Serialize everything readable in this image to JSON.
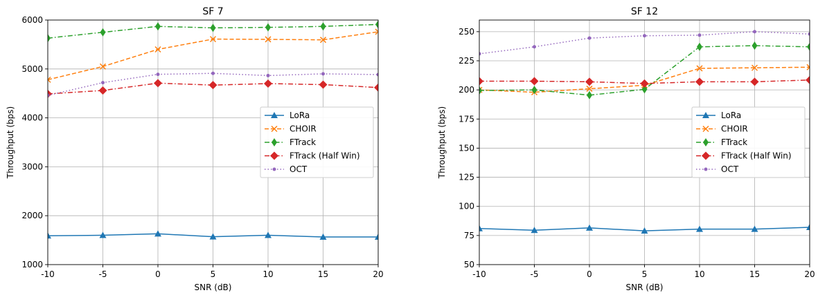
{
  "chart_data": [
    {
      "type": "line",
      "title": "SF 7",
      "xlabel": "SNR (dB)",
      "ylabel": "Throughput (bps)",
      "x": [
        -10,
        -5,
        0,
        5,
        10,
        15,
        20
      ],
      "x_tick_labels": [
        "-10",
        "-5",
        "0",
        "5",
        "10",
        "15",
        "20"
      ],
      "xlim": [
        -10,
        20
      ],
      "ylim": [
        1000,
        6000
      ],
      "y_ticks": [
        1000,
        2000,
        3000,
        4000,
        5000,
        6000
      ],
      "y_tick_labels": [
        "1000",
        "2000",
        "3000",
        "4000",
        "5000",
        "6000"
      ],
      "grid": true,
      "legend_position": "center-right",
      "series": [
        {
          "name": "LoRa",
          "color": "#1f77b4",
          "marker": "triangle",
          "dash": "solid",
          "values": [
            1590,
            1600,
            1630,
            1570,
            1600,
            1565,
            1565
          ]
        },
        {
          "name": "CHOIR",
          "color": "#ff7f0e",
          "marker": "x",
          "dash": "dashed",
          "values": [
            4780,
            5050,
            5400,
            5610,
            5605,
            5595,
            5760
          ]
        },
        {
          "name": "FTrack",
          "color": "#2ca02c",
          "marker": "thin-diamond",
          "dash": "dashdot",
          "values": [
            5630,
            5750,
            5870,
            5840,
            5850,
            5870,
            5910
          ]
        },
        {
          "name": "FTrack (Half Win)",
          "color": "#d62728",
          "marker": "diamond",
          "dash": "dashdot",
          "values": [
            4490,
            4560,
            4710,
            4670,
            4700,
            4680,
            4620
          ]
        },
        {
          "name": "OCT",
          "color": "#9467bd",
          "marker": "dot",
          "dash": "dotted",
          "values": [
            4460,
            4720,
            4890,
            4910,
            4865,
            4900,
            4885
          ]
        }
      ]
    },
    {
      "type": "line",
      "title": "SF 12",
      "xlabel": "SNR (dB)",
      "ylabel": "Throughput (bps)",
      "x": [
        -10,
        -5,
        0,
        5,
        10,
        15,
        20
      ],
      "x_tick_labels": [
        "-10",
        "-5",
        "0",
        "5",
        "10",
        "15",
        "20"
      ],
      "xlim": [
        -10,
        20
      ],
      "ylim": [
        50,
        260
      ],
      "y_ticks": [
        50,
        75,
        100,
        125,
        150,
        175,
        200,
        225,
        250
      ],
      "y_tick_labels": [
        "50",
        "75",
        "100",
        "125",
        "150",
        "175",
        "200",
        "225",
        "250"
      ],
      "grid": true,
      "legend_position": "center-right",
      "series": [
        {
          "name": "LoRa",
          "color": "#1f77b4",
          "marker": "triangle",
          "dash": "solid",
          "values": [
            81,
            79.5,
            81.5,
            79,
            80.5,
            80.5,
            82
          ]
        },
        {
          "name": "CHOIR",
          "color": "#ff7f0e",
          "marker": "x",
          "dash": "dashed",
          "values": [
            200,
            198,
            201,
            204,
            218.5,
            219,
            219.5
          ]
        },
        {
          "name": "FTrack",
          "color": "#2ca02c",
          "marker": "thin-diamond",
          "dash": "dashdot",
          "values": [
            199.5,
            200,
            195.5,
            200.5,
            237,
            238,
            237
          ]
        },
        {
          "name": "FTrack (Half Win)",
          "color": "#d62728",
          "marker": "diamond",
          "dash": "dashdot",
          "values": [
            207.5,
            207.5,
            207,
            205.5,
            207,
            207,
            208.5
          ]
        },
        {
          "name": "OCT",
          "color": "#9467bd",
          "marker": "dot",
          "dash": "dotted",
          "values": [
            231,
            237,
            244.5,
            246.5,
            247,
            250,
            248
          ]
        }
      ]
    }
  ]
}
